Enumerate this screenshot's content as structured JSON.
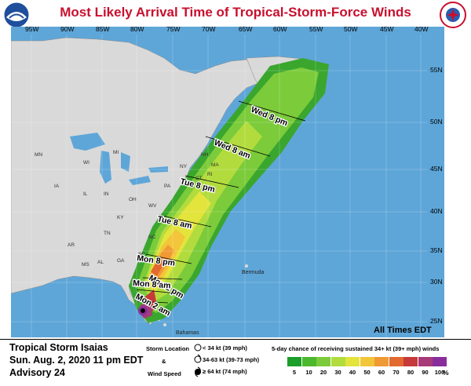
{
  "title": "Most Likely Arrival Time of Tropical-Storm-Force Winds",
  "logos": {
    "left": "noaa-logo",
    "right": "national-weather-service-logo"
  },
  "map": {
    "longitude_labels": [
      "95W",
      "90W",
      "85W",
      "80W",
      "75W",
      "70W",
      "65W",
      "60W",
      "55W",
      "50W",
      "45W",
      "40W"
    ],
    "latitude_labels": [
      "55N",
      "50N",
      "45N",
      "40N",
      "35N",
      "30N",
      "25N"
    ],
    "state_labels": [
      "MN",
      "WI",
      "MI",
      "IA",
      "IL",
      "IN",
      "OH",
      "KY",
      "WV",
      "PA",
      "NY",
      "MA",
      "NH",
      "RI",
      "TN",
      "AR",
      "MS",
      "AL",
      "GA",
      "SC",
      "NC",
      "VA",
      "CT"
    ],
    "place_labels": {
      "bermuda": "Bermuda",
      "bahamas": "Bahamas"
    },
    "times_note": "All Times EDT",
    "arrival_times": [
      {
        "label": "Wed 8 pm"
      },
      {
        "label": "Wed 8 am"
      },
      {
        "label": "Tue 8 pm"
      },
      {
        "label": "Tue 8 am"
      },
      {
        "label": "Mon 8 pm"
      },
      {
        "label": "Mon 2 pm"
      },
      {
        "label": "Mon 8 am"
      },
      {
        "label": "Mon 2 am"
      }
    ]
  },
  "storm": {
    "name": "Tropical Storm Isaias",
    "datetime": "Sun. Aug. 2, 2020  11 pm EDT",
    "advisory": "Advisory 24"
  },
  "wind_legend": {
    "header_1": "Storm Location",
    "header_2": "&",
    "header_3": "Wind Speed",
    "items": [
      "< 34 kt (39 mph)",
      "34-63 kt (39-73 mph)",
      "≥ 64 kt (74 mph)"
    ]
  },
  "probability_legend": {
    "title": "5-day chance of receiving sustained 34+ kt (39+ mph) winds",
    "values": [
      "5",
      "10",
      "20",
      "30",
      "40",
      "50",
      "60",
      "70",
      "80",
      "90",
      "100"
    ],
    "unit": "%",
    "colors": [
      "#1b9e2a",
      "#4cb82e",
      "#7ccb3a",
      "#b2dc3e",
      "#e3e43c",
      "#f3c53a",
      "#f09a35",
      "#e2692f",
      "#c63a3a",
      "#a83a7a",
      "#8a2d9c"
    ]
  },
  "colors": {
    "ocean": "#5ea6d8",
    "land": "#d9d9d9",
    "title": "#c8102e"
  }
}
